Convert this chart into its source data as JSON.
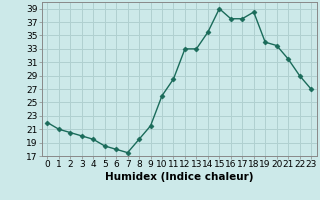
{
  "x": [
    0,
    1,
    2,
    3,
    4,
    5,
    6,
    7,
    8,
    9,
    10,
    11,
    12,
    13,
    14,
    15,
    16,
    17,
    18,
    19,
    20,
    21,
    22,
    23
  ],
  "y": [
    22,
    21,
    20.5,
    20,
    19.5,
    18.5,
    18,
    17.5,
    19.5,
    21.5,
    26,
    28.5,
    33,
    33,
    35.5,
    39,
    37.5,
    37.5,
    38.5,
    34,
    33.5,
    31.5,
    29,
    27
  ],
  "xlabel": "Humidex (Indice chaleur)",
  "ylim": [
    17,
    40
  ],
  "yticks": [
    17,
    19,
    21,
    23,
    25,
    27,
    29,
    31,
    33,
    35,
    37,
    39
  ],
  "xlim": [
    -0.5,
    23.5
  ],
  "xticks": [
    0,
    1,
    2,
    3,
    4,
    5,
    6,
    7,
    8,
    9,
    10,
    11,
    12,
    13,
    14,
    15,
    16,
    17,
    18,
    19,
    20,
    21,
    22,
    23
  ],
  "line_color": "#1a6b5a",
  "marker": "D",
  "marker_size": 2.5,
  "bg_color": "#cce9e9",
  "grid_color": "#b0d0d0",
  "line_width": 1.0,
  "tick_label_fontsize": 6.5,
  "xlabel_fontsize": 7.5
}
